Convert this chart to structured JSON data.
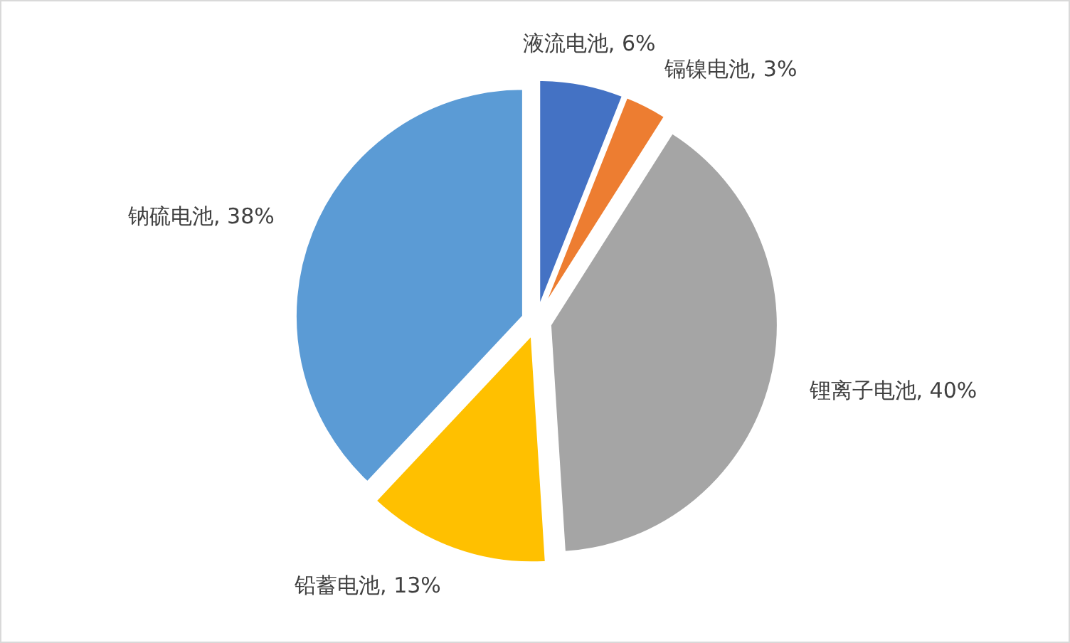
{
  "chart_data": {
    "type": "pie",
    "categories": [
      "液流电池",
      "镉镍电池",
      "锂离子电池",
      "铅蓄电池",
      "钠硫电池"
    ],
    "values": [
      6,
      3,
      40,
      13,
      38
    ],
    "colors": [
      "#4472c4",
      "#ed7d31",
      "#a5a5a5",
      "#ffc000",
      "#5b9bd5"
    ],
    "value_labels": [
      "6%",
      "3%",
      "40%",
      "13%",
      "38%"
    ],
    "legend": false
  }
}
